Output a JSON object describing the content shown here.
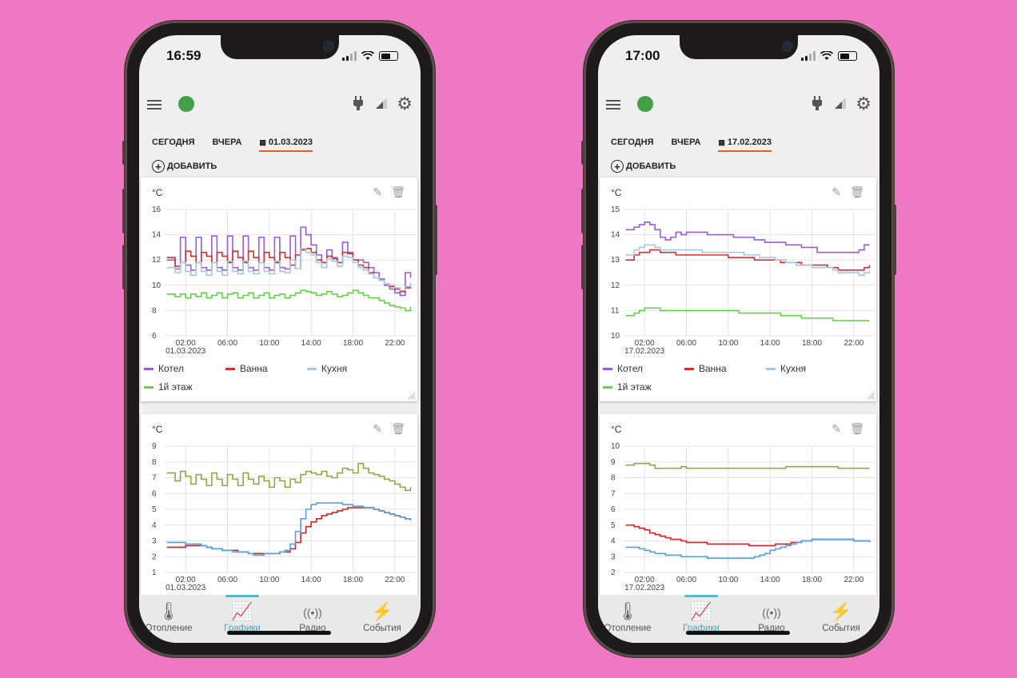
{
  "colors": {
    "background": "#ee78c4",
    "kotel": "#9c5bd6",
    "vanna": "#d62f2f",
    "kuhnya": "#a6c8df",
    "etazh": "#61d444",
    "outdoor": "#96a83a",
    "series_red": "#c62828",
    "series_blue": "#5aa0d6",
    "accent_tab": "#e0641e",
    "nav_active": "#4aa6ba",
    "online": "#43a047"
  },
  "phones": [
    {
      "time": "16:59",
      "tabs": [
        "СЕГОДНЯ",
        "ВЧЕРА",
        "01.03.2023"
      ],
      "active_tab": 2,
      "add_label": "ДОБАВИТЬ",
      "charts": [
        {
          "unit": "°C"
        },
        {
          "unit": "°C"
        }
      ],
      "nav": [
        "Отопление",
        "Графики",
        "Радио",
        "События"
      ],
      "active_nav": 1
    },
    {
      "time": "17:00",
      "tabs": [
        "СЕГОДНЯ",
        "ВЧЕРА",
        "17.02.2023"
      ],
      "active_tab": 2,
      "add_label": "ДОБАВИТЬ",
      "charts": [
        {
          "unit": "°C"
        },
        {
          "unit": "°C"
        }
      ],
      "nav": [
        "Отопление",
        "Графики",
        "Радио",
        "События"
      ],
      "active_nav": 1
    }
  ],
  "chart_data": [
    {
      "type": "line",
      "x_ticks": [
        "02:00",
        "06:00",
        "10:00",
        "14:00",
        "18:00",
        "22:00"
      ],
      "x_date": "01.03.2023",
      "ylim": [
        6,
        16
      ],
      "y_ticks": [
        6,
        8,
        10,
        12,
        14,
        16
      ],
      "x": [
        0.5,
        1,
        1.5,
        2,
        2.5,
        3,
        3.5,
        4,
        4.5,
        5,
        5.5,
        6,
        6.5,
        7,
        7.5,
        8,
        8.5,
        9,
        9.5,
        10,
        10.5,
        11,
        11.5,
        12,
        12.5,
        13,
        13.5,
        14,
        14.5,
        15,
        15.5,
        16,
        16.5,
        17,
        17.5,
        18,
        18.5,
        19,
        19.5,
        20,
        20.5,
        21,
        21.5,
        22,
        22.5,
        23,
        23.5
      ],
      "series": [
        {
          "name": "Котел",
          "color": "#9c5bd6",
          "values": [
            12.0,
            11.3,
            13.8,
            11.6,
            11.2,
            13.8,
            11.4,
            11.2,
            13.9,
            11.4,
            11.2,
            13.9,
            11.4,
            11.2,
            13.9,
            11.4,
            11.2,
            13.8,
            11.4,
            11.2,
            13.8,
            11.4,
            11.3,
            13.9,
            11.3,
            14.6,
            14.0,
            13.2,
            12.4,
            11.8,
            12.8,
            12.2,
            11.8,
            13.4,
            12.6,
            12.0,
            12.0,
            11.8,
            11.4,
            11.0,
            10.5,
            10.0,
            9.7,
            9.4,
            9.2,
            11.0,
            10.6
          ]
        },
        {
          "name": "Ванна",
          "color": "#d62f2f",
          "values": [
            12.2,
            11.5,
            11.8,
            12.7,
            12.3,
            11.8,
            12.6,
            12.3,
            11.8,
            12.6,
            12.3,
            11.8,
            12.7,
            12.2,
            11.8,
            12.7,
            12.2,
            11.8,
            12.6,
            12.2,
            11.8,
            12.6,
            12.2,
            11.6,
            12.4,
            12.8,
            12.9,
            12.6,
            12.0,
            11.8,
            12.3,
            12.1,
            11.8,
            12.6,
            12.5,
            12.0,
            11.6,
            11.4,
            11.0,
            10.6,
            10.4,
            10.1,
            9.9,
            9.7,
            9.5,
            9.8,
            10.0
          ]
        },
        {
          "name": "Кухня",
          "color": "#a6c8df",
          "values": [
            11.4,
            11.0,
            11.8,
            11.1,
            10.8,
            11.8,
            11.1,
            10.8,
            11.8,
            11.1,
            10.8,
            11.9,
            11.1,
            10.9,
            11.9,
            11.1,
            10.9,
            11.8,
            11.1,
            10.9,
            11.9,
            11.1,
            11.0,
            12.0,
            11.3,
            12.9,
            12.6,
            12.4,
            11.8,
            11.4,
            12.1,
            11.9,
            11.5,
            12.3,
            12.2,
            11.8,
            11.4,
            11.2,
            10.9,
            10.6,
            10.4,
            10.1,
            10.0,
            9.8,
            9.6,
            9.9,
            10.2
          ]
        },
        {
          "name": "1й этаж",
          "color": "#61d444",
          "values": [
            9.3,
            9.1,
            9.3,
            9.0,
            9.3,
            9.1,
            9.4,
            9.0,
            9.2,
            9.4,
            9.0,
            9.3,
            9.4,
            9.0,
            9.2,
            9.4,
            9.0,
            9.2,
            9.4,
            9.0,
            9.2,
            9.3,
            9.0,
            9.2,
            9.4,
            9.6,
            9.5,
            9.4,
            9.2,
            9.3,
            9.5,
            9.3,
            9.1,
            9.2,
            9.4,
            9.6,
            9.4,
            9.2,
            9.0,
            9.0,
            8.8,
            8.6,
            8.4,
            8.3,
            8.2,
            8.0,
            8.3
          ]
        }
      ]
    },
    {
      "type": "line",
      "x_ticks": [
        "02:00",
        "06:00",
        "10:00",
        "14:00",
        "18:00",
        "22:00"
      ],
      "x_date": "01.03.2023",
      "ylim": [
        1,
        9
      ],
      "y_ticks": [
        1,
        2,
        3,
        4,
        5,
        6,
        7,
        8,
        9
      ],
      "x": [
        0.5,
        1,
        1.5,
        2,
        2.5,
        3,
        3.5,
        4,
        4.5,
        5,
        5.5,
        6,
        6.5,
        7,
        7.5,
        8,
        8.5,
        9,
        9.5,
        10,
        10.5,
        11,
        11.5,
        12,
        12.5,
        13,
        13.5,
        14,
        14.5,
        15,
        15.5,
        16,
        16.5,
        17,
        17.5,
        18,
        18.5,
        19,
        19.5,
        20,
        20.5,
        21,
        21.5,
        22,
        22.5,
        23,
        23.5
      ],
      "series": [
        {
          "values": [
            7.3,
            6.8,
            7.4,
            7.1,
            6.6,
            7.2,
            6.9,
            6.5,
            7.3,
            6.9,
            6.5,
            7.2,
            6.9,
            6.5,
            7.3,
            6.9,
            6.6,
            7.1,
            6.8,
            6.4,
            7.0,
            6.8,
            6.4,
            6.9,
            6.7,
            7.2,
            7.4,
            7.3,
            7.2,
            7.4,
            7.1,
            7.0,
            7.3,
            7.6,
            7.5,
            7.3,
            7.9,
            7.6,
            7.3,
            7.2,
            7.1,
            6.9,
            6.8,
            6.6,
            6.4,
            6.2,
            6.4
          ],
          "color": "#96a83a"
        },
        {
          "values": [
            2.6,
            2.6,
            2.6,
            2.7,
            2.7,
            2.7,
            2.7,
            2.6,
            2.5,
            2.5,
            2.4,
            2.4,
            2.4,
            2.3,
            2.3,
            2.2,
            2.2,
            2.2,
            2.2,
            2.2,
            2.2,
            2.3,
            2.3,
            2.5,
            2.9,
            3.5,
            3.9,
            4.2,
            4.4,
            4.6,
            4.7,
            4.8,
            4.9,
            5.0,
            5.1,
            5.1,
            5.1,
            5.1,
            5.1,
            5.0,
            4.9,
            4.8,
            4.7,
            4.6,
            4.5,
            4.4,
            4.3
          ],
          "color": "#c62828"
        },
        {
          "values": [
            2.9,
            2.9,
            2.9,
            2.8,
            2.8,
            2.8,
            2.7,
            2.6,
            2.5,
            2.5,
            2.4,
            2.4,
            2.3,
            2.3,
            2.3,
            2.2,
            2.1,
            2.1,
            2.2,
            2.2,
            2.2,
            2.3,
            2.4,
            2.8,
            3.6,
            4.4,
            5.0,
            5.3,
            5.4,
            5.4,
            5.4,
            5.4,
            5.4,
            5.3,
            5.3,
            5.2,
            5.2,
            5.1,
            5.1,
            5.0,
            4.9,
            4.8,
            4.7,
            4.6,
            4.5,
            4.4,
            4.3
          ],
          "color": "#5aa0d6"
        }
      ]
    },
    {
      "type": "line",
      "x_ticks": [
        "02:00",
        "06:00",
        "10:00",
        "14:00",
        "18:00",
        "22:00"
      ],
      "x_date": "17.02.2023",
      "ylim": [
        10,
        15
      ],
      "y_ticks": [
        10,
        11,
        12,
        13,
        14,
        15
      ],
      "x": [
        0.5,
        1,
        1.5,
        2,
        2.5,
        3,
        3.5,
        4,
        4.5,
        5,
        5.5,
        6,
        6.5,
        7,
        7.5,
        8,
        8.5,
        9,
        9.5,
        10,
        10.5,
        11,
        11.5,
        12,
        12.5,
        13,
        13.5,
        14,
        14.5,
        15,
        15.5,
        16,
        16.5,
        17,
        17.5,
        18,
        18.5,
        19,
        19.5,
        20,
        20.5,
        21,
        21.5,
        22,
        22.5,
        23,
        23.5
      ],
      "series": [
        {
          "name": "Котел",
          "color": "#9c5bd6",
          "values": [
            14.2,
            14.3,
            14.4,
            14.5,
            14.4,
            14.2,
            13.9,
            13.8,
            13.9,
            14.1,
            14.0,
            14.1,
            14.1,
            14.1,
            14.1,
            14.0,
            14.0,
            14.0,
            14.0,
            14.0,
            13.9,
            13.9,
            13.9,
            13.9,
            13.8,
            13.8,
            13.7,
            13.7,
            13.7,
            13.7,
            13.6,
            13.6,
            13.6,
            13.5,
            13.5,
            13.5,
            13.3,
            13.3,
            13.3,
            13.3,
            13.3,
            13.3,
            13.3,
            13.3,
            13.4,
            13.6,
            13.6
          ]
        },
        {
          "name": "Ванна",
          "color": "#d62f2f",
          "values": [
            13.0,
            13.2,
            13.3,
            13.3,
            13.4,
            13.4,
            13.3,
            13.3,
            13.3,
            13.2,
            13.2,
            13.2,
            13.2,
            13.2,
            13.2,
            13.2,
            13.2,
            13.2,
            13.2,
            13.1,
            13.1,
            13.1,
            13.1,
            13.1,
            13.0,
            13.0,
            13.0,
            13.0,
            13.0,
            12.9,
            12.9,
            12.9,
            12.9,
            12.8,
            12.8,
            12.8,
            12.8,
            12.8,
            12.7,
            12.7,
            12.6,
            12.6,
            12.6,
            12.6,
            12.6,
            12.7,
            12.8
          ]
        },
        {
          "name": "Кухня",
          "color": "#a6c8df",
          "values": [
            13.2,
            13.4,
            13.5,
            13.6,
            13.6,
            13.5,
            13.4,
            13.4,
            13.4,
            13.4,
            13.4,
            13.4,
            13.4,
            13.4,
            13.3,
            13.3,
            13.3,
            13.3,
            13.3,
            13.3,
            13.3,
            13.3,
            13.2,
            13.2,
            13.2,
            13.1,
            13.1,
            13.1,
            13.0,
            13.0,
            12.9,
            12.9,
            12.8,
            12.8,
            12.8,
            12.7,
            12.7,
            12.7,
            12.7,
            12.6,
            12.5,
            12.5,
            12.5,
            12.5,
            12.4,
            12.5,
            12.6
          ]
        },
        {
          "name": "1й этаж",
          "color": "#61d444",
          "values": [
            10.8,
            10.9,
            11.0,
            11.1,
            11.1,
            11.1,
            11.0,
            11.0,
            11.0,
            11.0,
            11.0,
            11.0,
            11.0,
            11.0,
            11.0,
            11.0,
            11.0,
            11.0,
            11.0,
            11.0,
            11.0,
            10.9,
            10.9,
            10.9,
            10.9,
            10.9,
            10.9,
            10.9,
            10.9,
            10.8,
            10.8,
            10.8,
            10.8,
            10.7,
            10.7,
            10.7,
            10.7,
            10.7,
            10.7,
            10.6,
            10.6,
            10.6,
            10.6,
            10.6,
            10.6,
            10.6,
            10.6
          ]
        }
      ]
    },
    {
      "type": "line",
      "x_ticks": [
        "02:00",
        "06:00",
        "10:00",
        "14:00",
        "18:00",
        "22:00"
      ],
      "x_date": "17.02.2023",
      "ylim": [
        2,
        10
      ],
      "y_ticks": [
        2,
        3,
        4,
        5,
        6,
        7,
        8,
        9,
        10
      ],
      "x": [
        0.5,
        1,
        1.5,
        2,
        2.5,
        3,
        3.5,
        4,
        4.5,
        5,
        5.5,
        6,
        6.5,
        7,
        7.5,
        8,
        8.5,
        9,
        9.5,
        10,
        10.5,
        11,
        11.5,
        12,
        12.5,
        13,
        13.5,
        14,
        14.5,
        15,
        15.5,
        16,
        16.5,
        17,
        17.5,
        18,
        18.5,
        19,
        19.5,
        20,
        20.5,
        21,
        21.5,
        22,
        22.5,
        23,
        23.5
      ],
      "series": [
        {
          "values": [
            8.8,
            8.9,
            8.9,
            8.9,
            8.8,
            8.6,
            8.6,
            8.6,
            8.6,
            8.6,
            8.7,
            8.6,
            8.6,
            8.6,
            8.6,
            8.6,
            8.6,
            8.6,
            8.6,
            8.6,
            8.6,
            8.6,
            8.6,
            8.6,
            8.6,
            8.6,
            8.6,
            8.6,
            8.6,
            8.6,
            8.7,
            8.7,
            8.7,
            8.7,
            8.7,
            8.7,
            8.7,
            8.7,
            8.7,
            8.7,
            8.6,
            8.6,
            8.6,
            8.6,
            8.6,
            8.6,
            8.6
          ],
          "color": "#96a83a"
        },
        {
          "values": [
            5.0,
            4.9,
            4.8,
            4.7,
            4.5,
            4.4,
            4.3,
            4.2,
            4.1,
            4.1,
            4.0,
            3.9,
            3.9,
            3.9,
            3.9,
            3.8,
            3.8,
            3.8,
            3.8,
            3.8,
            3.8,
            3.8,
            3.8,
            3.7,
            3.7,
            3.7,
            3.7,
            3.7,
            3.8,
            3.8,
            3.8,
            3.9,
            3.9,
            4.0,
            4.0,
            4.1,
            4.1,
            4.1,
            4.1,
            4.1,
            4.1,
            4.1,
            4.1,
            4.0,
            4.0,
            4.0,
            3.9
          ],
          "color": "#c62828"
        },
        {
          "values": [
            3.6,
            3.6,
            3.5,
            3.4,
            3.3,
            3.2,
            3.2,
            3.1,
            3.1,
            3.1,
            3.0,
            3.0,
            3.0,
            3.0,
            3.0,
            2.9,
            2.9,
            2.9,
            2.9,
            2.9,
            2.9,
            2.9,
            2.9,
            2.9,
            3.0,
            3.1,
            3.2,
            3.4,
            3.5,
            3.6,
            3.7,
            3.8,
            3.9,
            4.0,
            4.0,
            4.1,
            4.1,
            4.1,
            4.1,
            4.1,
            4.1,
            4.1,
            4.1,
            4.0,
            4.0,
            4.0,
            3.9
          ],
          "color": "#5aa0d6"
        }
      ]
    }
  ]
}
